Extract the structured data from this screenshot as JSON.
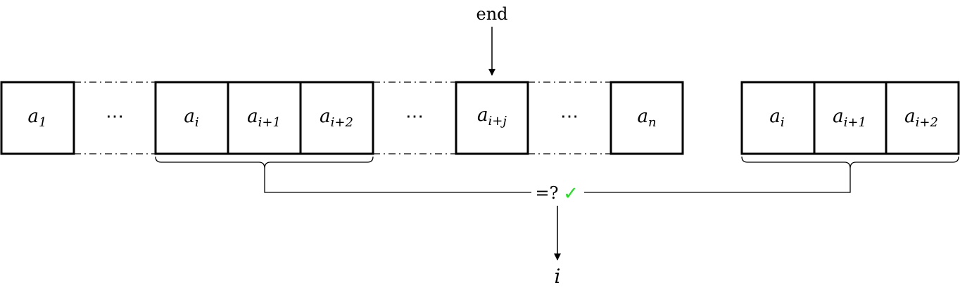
{
  "pointer_label": "end",
  "main_array": [
    {
      "kind": "cell",
      "base": "a",
      "sub": "1"
    },
    {
      "kind": "dots",
      "text": "⋯"
    },
    {
      "kind": "cell",
      "base": "a",
      "sub": "i"
    },
    {
      "kind": "cell",
      "base": "a",
      "sub": "i+1"
    },
    {
      "kind": "cell",
      "base": "a",
      "sub": "i+2"
    },
    {
      "kind": "dots",
      "text": "⋯"
    },
    {
      "kind": "cell",
      "base": "a",
      "sub": "i+j"
    },
    {
      "kind": "dots",
      "text": "⋯"
    },
    {
      "kind": "cell",
      "base": "a",
      "sub": "n"
    }
  ],
  "pattern_array": [
    {
      "base": "a",
      "sub": "i"
    },
    {
      "base": "a",
      "sub": "i+1"
    },
    {
      "base": "a",
      "sub": "i+2"
    }
  ],
  "comparison": {
    "operator": "=?",
    "check_mark": "✓",
    "check_color": "#22dd22"
  },
  "result": {
    "label": "i"
  }
}
